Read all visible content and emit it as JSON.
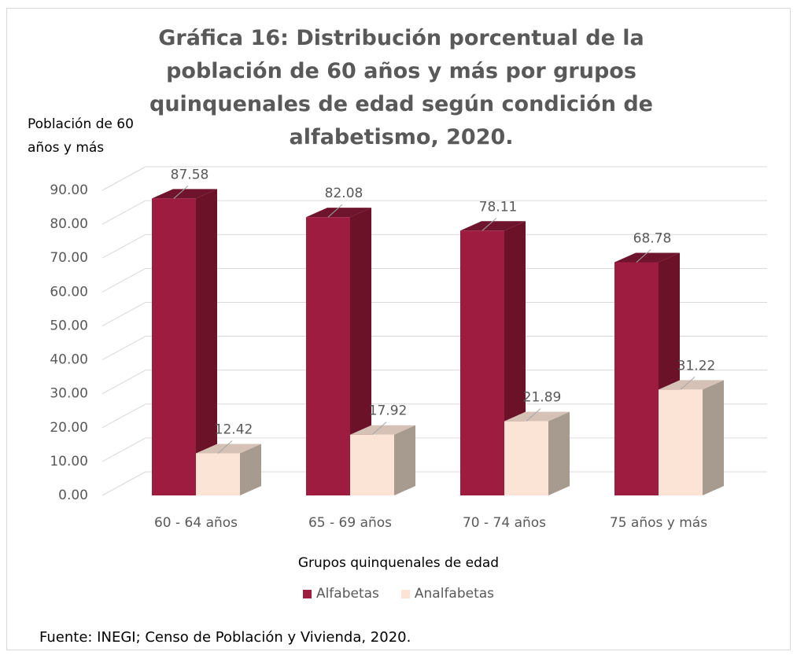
{
  "chart_data": {
    "type": "bar3d",
    "title": "Gráfica 16: Distribución porcentual de la población de 60 años y más por grupos quinquenales de edad según condición de alfabetismo, 2020.",
    "y_label": "Población de 60 años y más",
    "x_label": "Grupos quinquenales de edad",
    "source": "Fuente: INEGI; Censo de Población y Vivienda, 2020.",
    "categories": [
      "60 - 64 años",
      "65 - 69 años",
      "70 - 74 años",
      "75 años y más"
    ],
    "series": [
      {
        "name": "Alfabetas",
        "color": "#9e1c40",
        "values": [
          87.58,
          82.08,
          78.11,
          68.78
        ]
      },
      {
        "name": "Analfabetas",
        "color": "#fbe3d6",
        "values": [
          12.42,
          17.92,
          21.89,
          31.22
        ]
      }
    ],
    "ylim": [
      0,
      90
    ],
    "yticks": [
      {
        "value": 0,
        "label": "0.00"
      },
      {
        "value": 10,
        "label": "10.00"
      },
      {
        "value": 20,
        "label": "20.00"
      },
      {
        "value": 30,
        "label": "30.00"
      },
      {
        "value": 40,
        "label": "40.00"
      },
      {
        "value": 50,
        "label": "50.00"
      },
      {
        "value": 60,
        "label": "60.00"
      },
      {
        "value": 70,
        "label": "70.00"
      },
      {
        "value": 80,
        "label": "80.00"
      },
      {
        "value": 90,
        "label": "90.00"
      }
    ],
    "grid": true,
    "legend": "bottom"
  }
}
